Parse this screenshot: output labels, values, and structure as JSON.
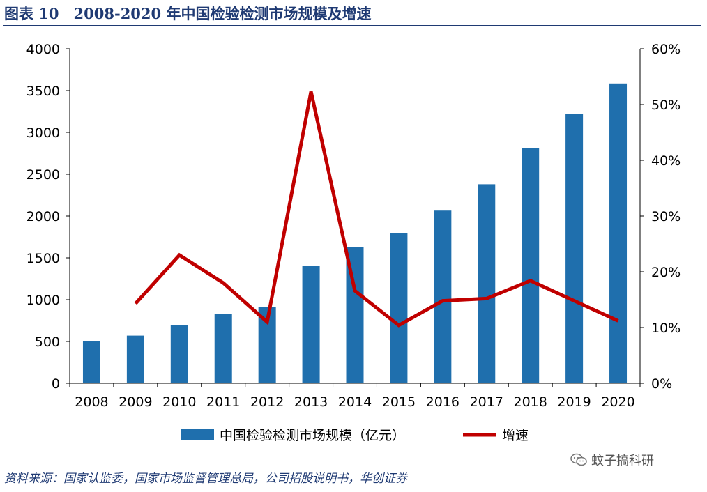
{
  "header": {
    "title": "图表 10　2008-2020 年中国检验检测市场规模及增速"
  },
  "footer": {
    "source": "资料来源：国家认监委，国家市场监督管理总局，公司招股说明书，华创证券",
    "watermark": "蚊子搞科研"
  },
  "colors": {
    "bar": "#1f6fad",
    "line": "#c00000",
    "title": "#1f3a73"
  },
  "chart_data": {
    "type": "bar+line",
    "categories": [
      "2008",
      "2009",
      "2010",
      "2011",
      "2012",
      "2013",
      "2014",
      "2015",
      "2016",
      "2017",
      "2018",
      "2019",
      "2020"
    ],
    "series": [
      {
        "name": "中国检验检测市场规模（亿元）",
        "type": "bar",
        "axis": "left",
        "values": [
          500,
          570,
          700,
          825,
          915,
          1400,
          1630,
          1800,
          2065,
          2380,
          2810,
          3225,
          3585
        ]
      },
      {
        "name": "增速",
        "type": "line",
        "axis": "right",
        "values": [
          null,
          14.3,
          23.0,
          18.0,
          11.0,
          52.3,
          16.6,
          10.4,
          14.8,
          15.2,
          18.4,
          14.8,
          11.2
        ]
      }
    ],
    "y_left": {
      "min": 0,
      "max": 4000,
      "ticks": [
        "0",
        "500",
        "1000",
        "1500",
        "2000",
        "2500",
        "3000",
        "3500",
        "4000"
      ]
    },
    "y_right": {
      "min": 0,
      "max": 60,
      "ticks": [
        "0%",
        "10%",
        "20%",
        "30%",
        "40%",
        "50%",
        "60%"
      ]
    },
    "grid": false,
    "legend_position": "bottom"
  }
}
